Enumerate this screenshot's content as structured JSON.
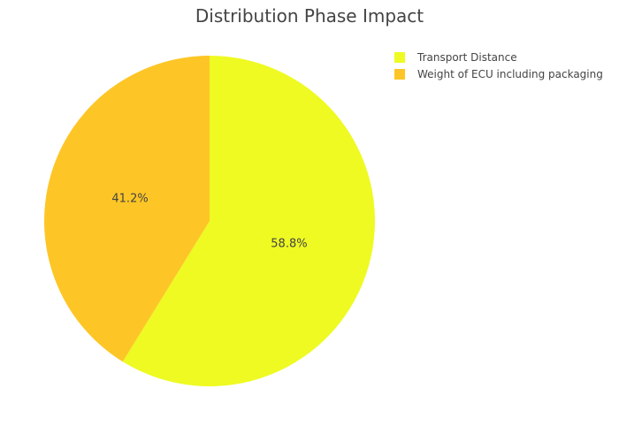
{
  "chart_data": {
    "type": "pie",
    "title": "Distribution Phase Impact",
    "labels": [
      "Transport Distance",
      "Weight of ECU including packaging"
    ],
    "values": [
      58.8,
      41.2
    ],
    "value_labels": [
      "58.8%",
      "41.2%"
    ],
    "colors": [
      "#eefa22",
      "#fdc626"
    ],
    "legend_position": "top-right",
    "start_angle_deg": 0,
    "direction": "clockwise"
  }
}
